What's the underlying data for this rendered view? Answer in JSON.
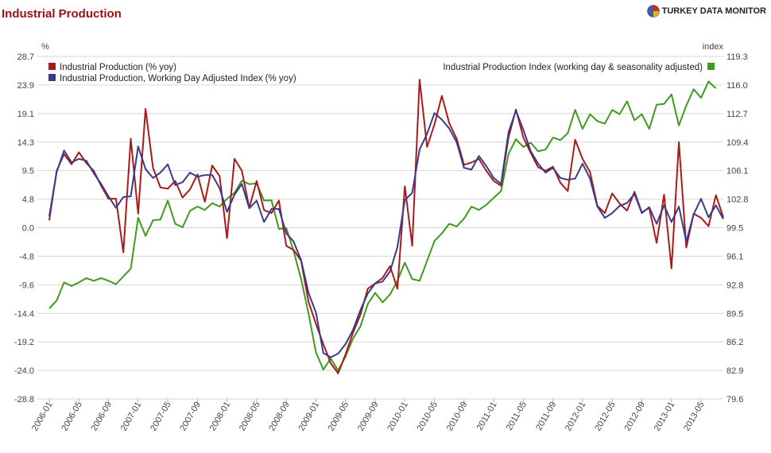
{
  "header": {
    "title": "Industrial Production",
    "brand": "TURKEY DATA MONITOR"
  },
  "chart_data": {
    "type": "line",
    "title": "Industrial Production",
    "left_axis_unit": "%",
    "right_axis_unit": "index",
    "left_ticks": [
      "28.7",
      "23.9",
      "19.1",
      "14.3",
      "9.5",
      "4.8",
      "0.0",
      "-4.8",
      "-9.6",
      "-14.4",
      "-19.2",
      "-24.0",
      "-28.8"
    ],
    "right_ticks": [
      "119.3",
      "116.0",
      "112.7",
      "109.4",
      "106.1",
      "102.8",
      "99.5",
      "96.1",
      "92.8",
      "89.5",
      "86.2",
      "82.9",
      "79.6"
    ],
    "ylim_left": [
      -28.8,
      28.7
    ],
    "ylim_right": [
      79.6,
      119.3
    ],
    "x_start": "2006-01",
    "x_end": "2013-05",
    "x_tick_labels": [
      "2006-01",
      "2006-05",
      "2006-09",
      "2007-01",
      "2007-05",
      "2007-09",
      "2008-01",
      "2008-05",
      "2008-09",
      "2009-01",
      "2009-05",
      "2009-09",
      "2010-01",
      "2010-05",
      "2010-09",
      "2011-01",
      "2011-05",
      "2011-09",
      "2012-01",
      "2012-05",
      "2012-09",
      "2013-01",
      "2013-05"
    ],
    "grid": true,
    "colors": {
      "red": "#aa1a1a",
      "blue": "#3a3a8c",
      "green": "#3f9a1f"
    },
    "series": [
      {
        "name": "Industrial Production (% yoy)",
        "axis": "left",
        "color": "#aa1a1a",
        "values": [
          1.2,
          9.5,
          12.3,
          10.6,
          12.6,
          10.8,
          9.5,
          7.0,
          4.8,
          4.8,
          -4.2,
          14.9,
          2.3,
          19.9,
          10.0,
          6.7,
          6.5,
          7.8,
          5.0,
          6.4,
          8.9,
          4.3,
          10.4,
          8.6,
          -1.8,
          11.5,
          9.5,
          3.3,
          7.8,
          2.9,
          2.4,
          4.5,
          -3.1,
          -3.8,
          -5.6,
          -12.5,
          -16.2,
          -19.6,
          -22.8,
          -24.5,
          -21.3,
          -17.7,
          -14.7,
          -10.3,
          -9.4,
          -8.5,
          -6.5,
          -10.3,
          6.9,
          -3.1,
          24.8,
          13.5,
          17.3,
          22.1,
          17.5,
          14.9,
          10.5,
          10.9,
          11.5,
          9.5,
          7.8,
          7.0,
          15.1,
          19.8,
          15.1,
          12.5,
          10.1,
          9.5,
          10.2,
          7.5,
          6.1,
          14.7,
          11.5,
          9.3,
          3.6,
          2.4,
          5.7,
          4.0,
          2.8,
          6.0,
          2.5,
          3.3,
          -2.6,
          5.5,
          -6.9,
          14.3,
          -3.4,
          2.3,
          1.6,
          0.2,
          5.4,
          1.7
        ]
      },
      {
        "name": "Industrial Production, Working Day Adjusted Index (% yoy)",
        "axis": "left",
        "color": "#3a3a8c",
        "values": [
          1.9,
          9.3,
          12.9,
          10.9,
          11.5,
          11.2,
          9.1,
          7.3,
          5.2,
          3.3,
          5.1,
          5.2,
          13.6,
          9.8,
          8.3,
          9.2,
          10.6,
          7.1,
          7.6,
          9.2,
          8.5,
          8.8,
          8.8,
          6.6,
          2.6,
          5.5,
          7.3,
          3.2,
          4.5,
          0.9,
          3.1,
          3.1,
          -1.0,
          -2.4,
          -5.5,
          -11.0,
          -14.3,
          -21.1,
          -21.8,
          -21.2,
          -19.6,
          -17.2,
          -13.9,
          -11.1,
          -9.4,
          -9.1,
          -7.4,
          -3.3,
          4.6,
          5.8,
          13.1,
          15.7,
          19.2,
          18.1,
          16.6,
          14.3,
          10.0,
          9.7,
          12.0,
          10.3,
          8.3,
          7.3,
          16.0,
          19.6,
          16.4,
          12.8,
          10.7,
          9.2,
          10.0,
          8.3,
          8.0,
          8.2,
          10.7,
          8.2,
          3.5,
          1.6,
          2.4,
          3.6,
          4.1,
          5.6,
          2.4,
          3.4,
          0.6,
          3.7,
          0.9,
          3.5,
          -2.4,
          2.2,
          4.8,
          1.7,
          3.7,
          1.4
        ]
      },
      {
        "name": "Industrial Production Index (working day & seasonality adjusted)",
        "axis": "right",
        "color": "#3f9a1f",
        "values": [
          90.1,
          91.0,
          93.1,
          92.7,
          93.1,
          93.6,
          93.3,
          93.6,
          93.3,
          92.9,
          93.8,
          94.7,
          100.6,
          98.5,
          100.3,
          100.4,
          102.6,
          99.9,
          99.5,
          101.4,
          101.9,
          101.5,
          102.3,
          101.9,
          102.8,
          103.5,
          104.9,
          104.5,
          104.6,
          102.6,
          102.6,
          99.3,
          99.4,
          96.7,
          93.5,
          89.5,
          85.0,
          83.0,
          84.3,
          82.9,
          84.5,
          86.6,
          88.0,
          90.6,
          91.9,
          90.8,
          91.7,
          93.3,
          95.4,
          93.5,
          93.3,
          95.6,
          97.9,
          98.8,
          99.9,
          99.6,
          100.5,
          101.9,
          101.5,
          102.1,
          102.9,
          103.7,
          108.0,
          109.7,
          108.8,
          109.3,
          108.3,
          108.5,
          109.9,
          109.6,
          110.4,
          113.1,
          110.9,
          112.6,
          111.8,
          111.5,
          113.1,
          112.6,
          114.1,
          111.9,
          112.6,
          110.9,
          113.7,
          113.8,
          114.9,
          111.3,
          113.6,
          115.5,
          114.5,
          116.4,
          115.6
        ]
      }
    ]
  }
}
